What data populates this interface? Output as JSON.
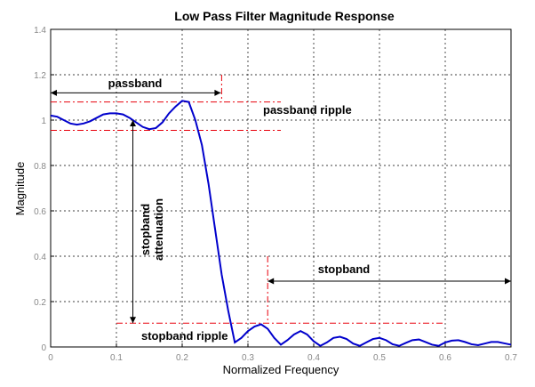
{
  "chart_data": {
    "type": "line",
    "title": "Low Pass Filter Magnitude Response",
    "xlabel": "Normalized Frequency",
    "ylabel": "Magnitude",
    "xlim": [
      0,
      0.7
    ],
    "ylim": [
      0,
      1.4
    ],
    "xticks": [
      "0",
      "0.1",
      "0.2",
      "0.3",
      "0.4",
      "0.5",
      "0.6",
      "0.7"
    ],
    "yticks": [
      "0",
      "0.2",
      "0.4",
      "0.6",
      "0.8",
      "1",
      "1.2",
      "1.4"
    ],
    "grid": true,
    "series": [
      {
        "color": "#0000cc",
        "x": [
          0,
          0.01,
          0.02,
          0.03,
          0.04,
          0.05,
          0.06,
          0.07,
          0.08,
          0.09,
          0.1,
          0.11,
          0.12,
          0.13,
          0.14,
          0.15,
          0.16,
          0.17,
          0.18,
          0.19,
          0.2,
          0.21,
          0.22,
          0.23,
          0.24,
          0.25,
          0.26,
          0.27,
          0.28,
          0.29,
          0.3,
          0.31,
          0.32,
          0.33,
          0.34,
          0.35,
          0.36,
          0.37,
          0.38,
          0.39,
          0.4,
          0.41,
          0.42,
          0.43,
          0.44,
          0.45,
          0.46,
          0.47,
          0.48,
          0.49,
          0.5,
          0.51,
          0.52,
          0.53,
          0.54,
          0.55,
          0.56,
          0.57,
          0.58,
          0.59,
          0.6,
          0.61,
          0.62,
          0.63,
          0.64,
          0.65,
          0.66,
          0.67,
          0.68,
          0.69,
          0.7
        ],
        "y": [
          1.02,
          1.015,
          1.0,
          0.985,
          0.98,
          0.985,
          0.995,
          1.01,
          1.025,
          1.03,
          1.03,
          1.025,
          1.01,
          0.99,
          0.97,
          0.96,
          0.965,
          0.99,
          1.03,
          1.06,
          1.085,
          1.08,
          1.0,
          0.89,
          0.72,
          0.52,
          0.32,
          0.16,
          0.02,
          0.04,
          0.07,
          0.09,
          0.1,
          0.08,
          0.04,
          0.01,
          0.03,
          0.055,
          0.07,
          0.055,
          0.025,
          0.005,
          0.02,
          0.04,
          0.045,
          0.035,
          0.015,
          0.005,
          0.02,
          0.035,
          0.04,
          0.03,
          0.012,
          0.005,
          0.018,
          0.03,
          0.033,
          0.022,
          0.01,
          0.005,
          0.02,
          0.028,
          0.03,
          0.022,
          0.012,
          0.008,
          0.015,
          0.022,
          0.022,
          0.016,
          0.01
        ]
      }
    ],
    "annotations": {
      "passband": "passband",
      "passband_ripple": "passband ripple",
      "stopband_attenuation_line1": "stopband",
      "stopband_attenuation_line2": "attenuation",
      "stopband": "stopband",
      "stopband_ripple": "stopband ripple"
    },
    "guides": {
      "passband_edge_x": 0.26,
      "passband_upper_y": 1.08,
      "passband_lower_y": 0.955,
      "stopband_edge_x": 0.33,
      "stopband_ripple_y": 0.105,
      "guide_color": "#e8000b"
    }
  }
}
